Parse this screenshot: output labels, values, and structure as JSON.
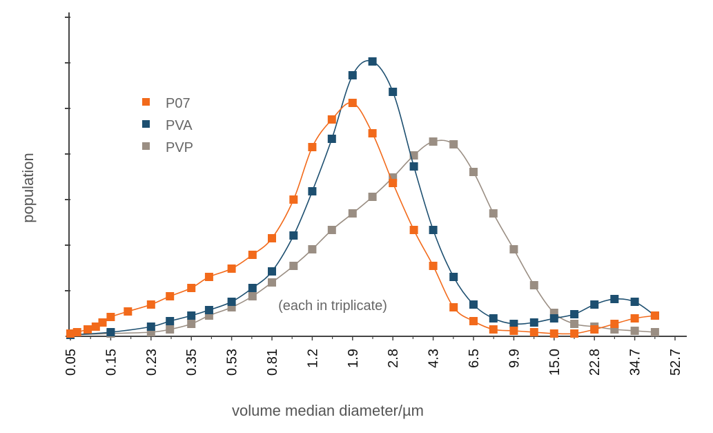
{
  "chart_data": {
    "type": "line",
    "xlabel": "volume median diameter/µm",
    "ylabel": "population",
    "annotation": "(each in triplicate)",
    "x_tick_labels": [
      "0.05",
      "0.15",
      "0.23",
      "0.35",
      "0.53",
      "0.81",
      "1.2",
      "1.9",
      "2.8",
      "4.3",
      "6.5",
      "9.9",
      "15.0",
      "22.8",
      "34.7",
      "52.7"
    ],
    "x_scale": "log",
    "y_range": [
      0,
      1.0
    ],
    "legend_position": "upper-left",
    "markers": "square",
    "series": [
      {
        "name": "P07",
        "color": "#f26a1b",
        "x": [
          0.05,
          0.06,
          0.08,
          0.1,
          0.12,
          0.15,
          0.18,
          0.23,
          0.28,
          0.35,
          0.42,
          0.53,
          0.66,
          0.81,
          1.0,
          1.2,
          1.5,
          1.9,
          2.3,
          2.8,
          3.5,
          4.3,
          5.3,
          6.5,
          8.0,
          9.9,
          12.2,
          15.0,
          18.5,
          22.8,
          28.1,
          34.7,
          42.8
        ],
        "y": [
          0.005,
          0.01,
          0.02,
          0.03,
          0.045,
          0.065,
          0.085,
          0.11,
          0.14,
          0.17,
          0.21,
          0.24,
          0.29,
          0.35,
          0.49,
          0.68,
          0.78,
          0.84,
          0.73,
          0.55,
          0.38,
          0.25,
          0.1,
          0.05,
          0.02,
          0.015,
          0.01,
          0.005,
          0.005,
          0.02,
          0.04,
          0.06,
          0.07
        ]
      },
      {
        "name": "PVA",
        "color": "#1d4f70",
        "x": [
          0.05,
          0.15,
          0.23,
          0.28,
          0.35,
          0.42,
          0.53,
          0.66,
          0.81,
          1.0,
          1.2,
          1.5,
          1.9,
          2.3,
          2.8,
          3.5,
          4.3,
          5.3,
          6.5,
          8.0,
          9.9,
          12.2,
          15.0,
          18.5,
          22.8,
          28.1,
          34.7,
          42.8
        ],
        "y": [
          0.0,
          0.01,
          0.03,
          0.05,
          0.07,
          0.09,
          0.12,
          0.17,
          0.23,
          0.36,
          0.52,
          0.71,
          0.94,
          0.99,
          0.88,
          0.61,
          0.38,
          0.21,
          0.11,
          0.06,
          0.04,
          0.045,
          0.06,
          0.075,
          0.11,
          0.13,
          0.12,
          0.07
        ]
      },
      {
        "name": "PVP",
        "color": "#9a8e83",
        "x": [
          0.05,
          0.15,
          0.23,
          0.28,
          0.35,
          0.42,
          0.53,
          0.66,
          0.81,
          1.0,
          1.2,
          1.5,
          1.9,
          2.3,
          2.8,
          3.5,
          4.3,
          5.3,
          6.5,
          8.0,
          9.9,
          12.2,
          15.0,
          18.5,
          22.8,
          28.1,
          34.7,
          42.8
        ],
        "y": [
          0.0,
          0.005,
          0.01,
          0.02,
          0.04,
          0.07,
          0.1,
          0.14,
          0.19,
          0.25,
          0.31,
          0.38,
          0.44,
          0.5,
          0.57,
          0.65,
          0.7,
          0.69,
          0.59,
          0.44,
          0.31,
          0.18,
          0.08,
          0.04,
          0.03,
          0.02,
          0.015,
          0.01
        ]
      }
    ]
  }
}
